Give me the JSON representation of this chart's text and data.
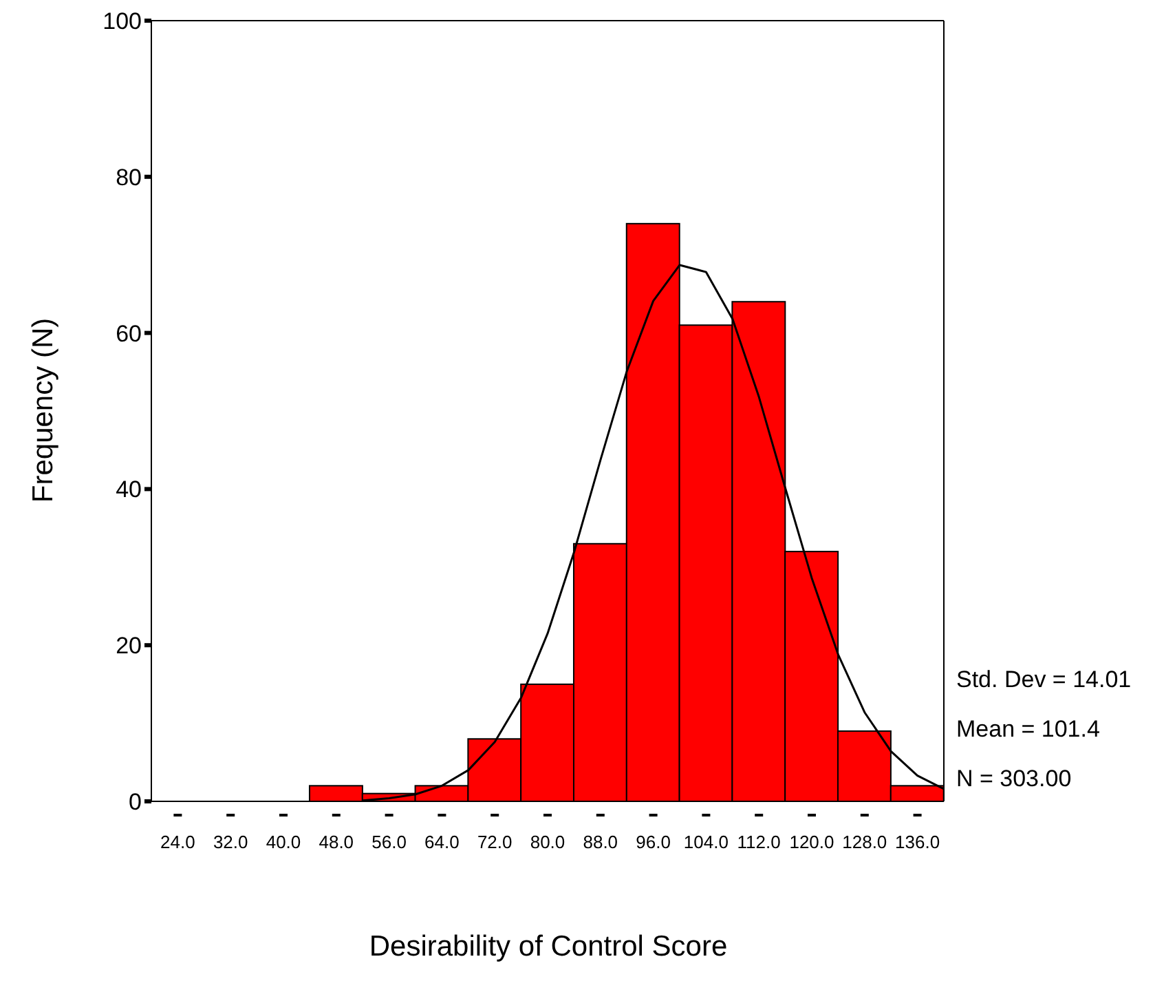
{
  "chart_data": {
    "type": "histogram",
    "xlabel": "Desirability of Control Score",
    "ylabel": "Frequency (N)",
    "bins": [
      20,
      28,
      36,
      44,
      52,
      60,
      68,
      76,
      84,
      92,
      100,
      108,
      116,
      124,
      132,
      140
    ],
    "values": [
      0,
      0,
      0,
      2,
      1,
      2,
      8,
      15,
      33,
      74,
      61,
      64,
      32,
      9,
      2
    ],
    "color": "#ff0000",
    "series": [
      {
        "type": "line",
        "color": "#000000",
        "x": [
          52,
          56,
          60,
          64,
          68,
          72,
          76,
          80,
          84,
          88,
          92,
          96,
          100,
          104,
          108,
          112,
          116,
          120,
          124,
          128,
          132,
          136,
          140
        ],
        "values": [
          0.1,
          0.4,
          0.9,
          2.0,
          4.0,
          7.6,
          13.3,
          21.5,
          31.9,
          43.7,
          55.1,
          64.1,
          68.7,
          67.8,
          61.8,
          51.8,
          40.1,
          28.6,
          18.8,
          11.4,
          6.4,
          3.3,
          1.6
        ]
      }
    ],
    "xlim": [
      20,
      140
    ],
    "xticks": [
      {
        "value": 24,
        "label": "24.0"
      },
      {
        "value": 32,
        "label": "32.0"
      },
      {
        "value": 40,
        "label": "40.0"
      },
      {
        "value": 48,
        "label": "48.0"
      },
      {
        "value": 56,
        "label": "56.0"
      },
      {
        "value": 64,
        "label": "64.0"
      },
      {
        "value": 72,
        "label": "72.0"
      },
      {
        "value": 80,
        "label": "80.0"
      },
      {
        "value": 88,
        "label": "88.0"
      },
      {
        "value": 96,
        "label": "96.0"
      },
      {
        "value": 104,
        "label": "104.0"
      },
      {
        "value": 112,
        "label": "112.0"
      },
      {
        "value": 120,
        "label": "120.0"
      },
      {
        "value": 128,
        "label": "128.0"
      },
      {
        "value": 136,
        "label": "136.0"
      }
    ],
    "ylim": [
      0,
      100
    ],
    "yticks": [
      0,
      20,
      40,
      60,
      80,
      100
    ],
    "annotations": [
      "Std. Dev = 14.01",
      "Mean = 101.4",
      "N = 303.00"
    ]
  }
}
